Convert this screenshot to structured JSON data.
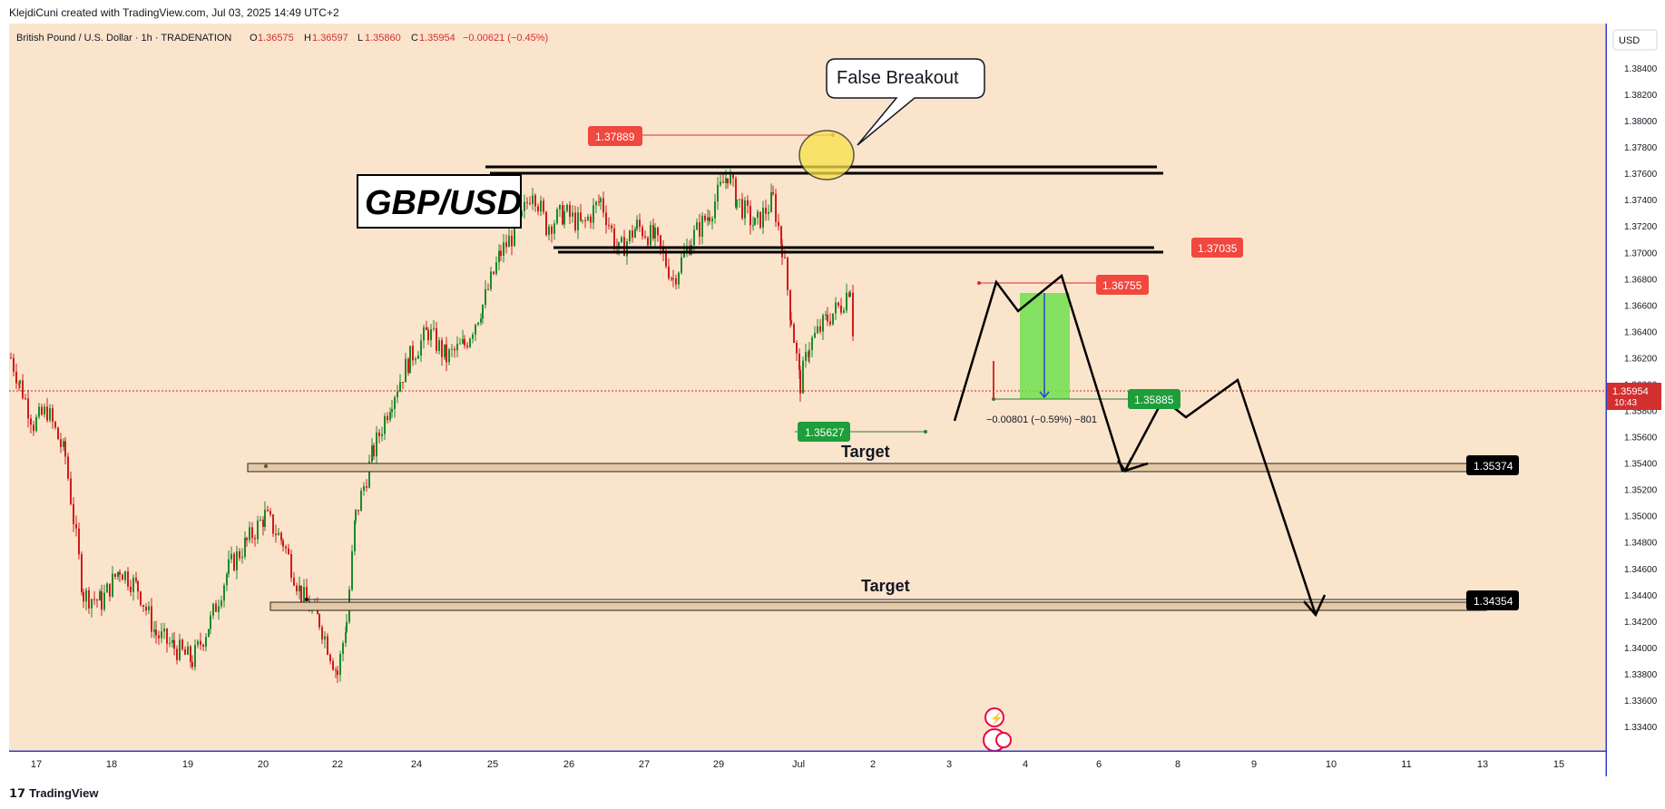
{
  "header": {
    "created_by": "KlejdiCuni created with TradingView.com, Jul 03, 2025 14:49 UTC+2"
  },
  "legend": {
    "symbol": "British Pound / U.S. Dollar · 1h · TRADENATION",
    "o_label": "O",
    "o": "1.36575",
    "h_label": "H",
    "h": "1.36597",
    "l_label": "L",
    "l": "1.35860",
    "c_label": "C",
    "c": "1.35954",
    "change": "−0.00621 (−0.45%)"
  },
  "currency_button": "USD",
  "title_box": "GBP/USD",
  "annotations": {
    "false_breakout": "False Breakout",
    "target_1": "Target",
    "target_2": "Target",
    "measure": "−0.00801 (−0.59%) −801"
  },
  "price_labels": {
    "high": "1.37889",
    "resistance": "1.37035",
    "entry": "1.36755",
    "low": "1.35627",
    "tp": "1.35885",
    "target1": "1.35374",
    "target2": "1.34354",
    "current": "1.35954",
    "countdown": "10:43"
  },
  "chart_data": {
    "type": "candlestick",
    "symbol": "GBP/USD",
    "interval": "1h",
    "ylim": [
      1.332,
      1.386
    ],
    "y_ticks": [
      "1.38400",
      "1.38200",
      "1.38000",
      "1.37800",
      "1.37600",
      "1.37400",
      "1.37200",
      "1.37000",
      "1.36800",
      "1.36600",
      "1.36400",
      "1.36200",
      "1.36000",
      "1.35800",
      "1.35600",
      "1.35400",
      "1.35200",
      "1.35000",
      "1.34800",
      "1.34600",
      "1.34400",
      "1.34200",
      "1.34000",
      "1.33800",
      "1.33600",
      "1.33400"
    ],
    "x_ticks": [
      "17",
      "18",
      "19",
      "20",
      "22",
      "24",
      "25",
      "26",
      "27",
      "29",
      "Jul",
      "2",
      "3",
      "4",
      "6",
      "8",
      "9",
      "10",
      "11",
      "13",
      "15"
    ],
    "levels": {
      "resistance_high": 1.3762,
      "resistance_low": 1.37035,
      "target_1": 1.35374,
      "target_2": 1.34354
    },
    "markers": {
      "high": 1.37889,
      "low": 1.35627,
      "entry": 1.36755,
      "take_profit": 1.35885,
      "last": 1.35954
    },
    "close_path": [
      [
        0,
        1.362
      ],
      [
        10,
        1.36
      ],
      [
        25,
        1.357
      ],
      [
        40,
        1.358
      ],
      [
        60,
        1.3545
      ],
      [
        80,
        1.344
      ],
      [
        100,
        1.3435
      ],
      [
        120,
        1.346
      ],
      [
        140,
        1.3445
      ],
      [
        160,
        1.341
      ],
      [
        180,
        1.34
      ],
      [
        200,
        1.339
      ],
      [
        220,
        1.342
      ],
      [
        240,
        1.346
      ],
      [
        260,
        1.348
      ],
      [
        280,
        1.35
      ],
      [
        300,
        1.348
      ],
      [
        320,
        1.344
      ],
      [
        340,
        1.342
      ],
      [
        360,
        1.338
      ],
      [
        370,
        1.342
      ],
      [
        380,
        1.35
      ],
      [
        400,
        1.355
      ],
      [
        420,
        1.359
      ],
      [
        440,
        1.362
      ],
      [
        460,
        1.364
      ],
      [
        480,
        1.362
      ],
      [
        500,
        1.363
      ],
      [
        520,
        1.366
      ],
      [
        540,
        1.37
      ],
      [
        560,
        1.372
      ],
      [
        575,
        1.375
      ],
      [
        590,
        1.372
      ],
      [
        610,
        1.373
      ],
      [
        630,
        1.372
      ],
      [
        650,
        1.374
      ],
      [
        670,
        1.37
      ],
      [
        690,
        1.372
      ],
      [
        710,
        1.371
      ],
      [
        730,
        1.368
      ],
      [
        750,
        1.371
      ],
      [
        770,
        1.373
      ],
      [
        790,
        1.376
      ],
      [
        800,
        1.374
      ],
      [
        820,
        1.372
      ],
      [
        840,
        1.374
      ],
      [
        850,
        1.3705
      ],
      [
        860,
        1.365
      ],
      [
        870,
        1.36
      ],
      [
        880,
        1.363
      ],
      [
        900,
        1.365
      ],
      [
        915,
        1.366
      ],
      [
        925,
        1.3675
      ],
      [
        930,
        1.362
      ]
    ]
  }
}
